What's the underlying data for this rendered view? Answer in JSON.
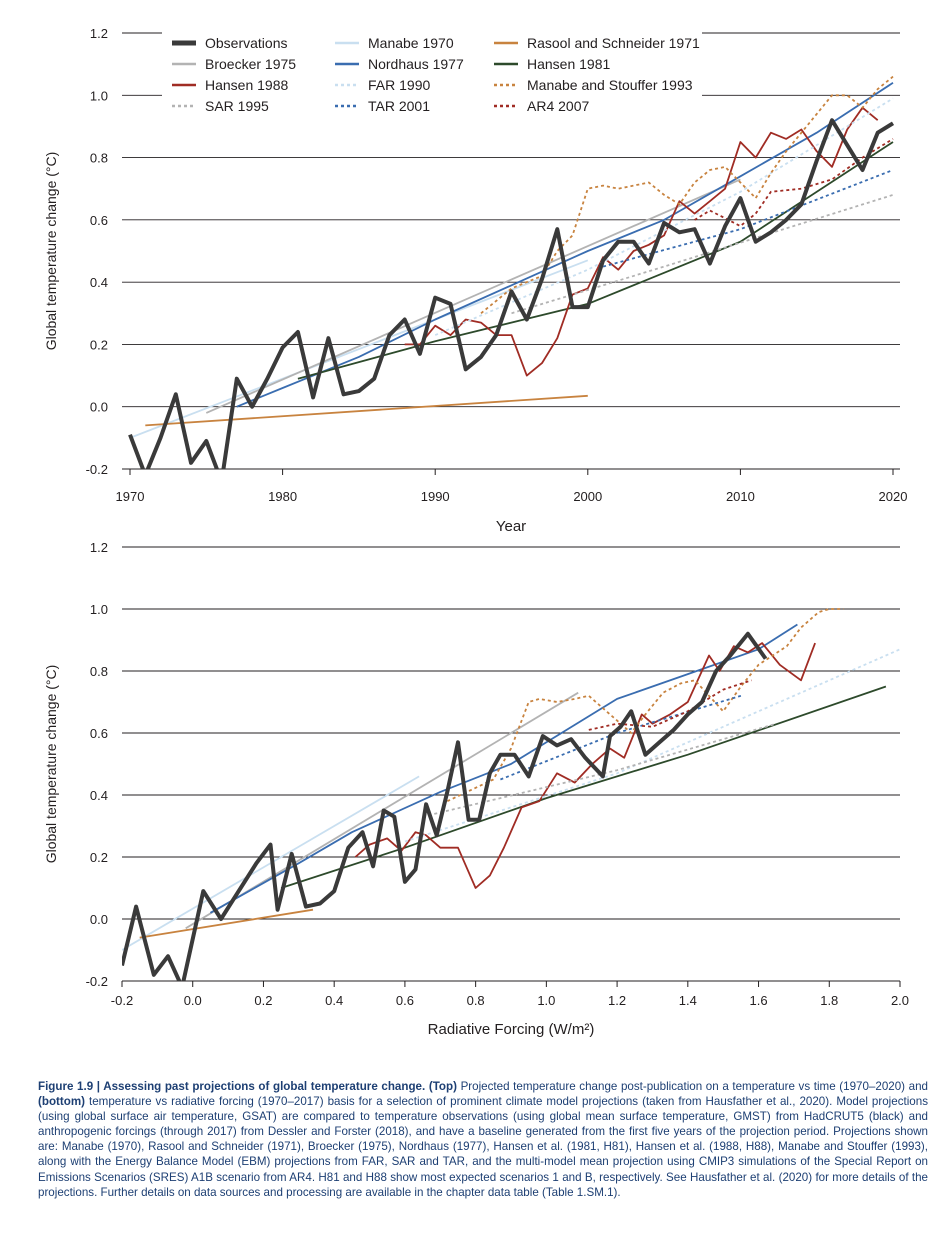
{
  "chart_data": [
    {
      "type": "line",
      "xlabel": "Year",
      "ylabel": "Global temperature change (°C)",
      "xlim": [
        1970,
        2020
      ],
      "ylim": [
        -0.2,
        1.2
      ],
      "xticks": [
        "1970",
        "1980",
        "1990",
        "2000",
        "2010",
        "2020"
      ],
      "yticks": [
        "-0.2",
        "0.0",
        "0.2",
        "0.4",
        "0.6",
        "0.8",
        "1.0",
        "1.2"
      ],
      "grid": "horizontal",
      "legend_position": "top-left",
      "series": [
        {
          "name": "Observations",
          "color": "#3a3a3a",
          "dash": "solid",
          "width": "heavy",
          "x": [
            1970,
            1971,
            1972,
            1973,
            1974,
            1975,
            1976,
            1977,
            1978,
            1979,
            1980,
            1981,
            1982,
            1983,
            1984,
            1985,
            1986,
            1987,
            1988,
            1989,
            1990,
            1991,
            1992,
            1993,
            1994,
            1995,
            1996,
            1997,
            1998,
            1999,
            2000,
            2001,
            2002,
            2003,
            2004,
            2005,
            2006,
            2007,
            2008,
            2009,
            2010,
            2011,
            2012,
            2013,
            2014,
            2015,
            2016,
            2017,
            2018,
            2019,
            2020
          ],
          "y": [
            -0.09,
            -0.22,
            -0.1,
            0.04,
            -0.18,
            -0.11,
            -0.24,
            0.09,
            0.0,
            0.09,
            0.19,
            0.24,
            0.03,
            0.22,
            0.04,
            0.05,
            0.09,
            0.23,
            0.28,
            0.17,
            0.35,
            0.33,
            0.12,
            0.16,
            0.23,
            0.37,
            0.28,
            0.41,
            0.57,
            0.32,
            0.32,
            0.47,
            0.53,
            0.53,
            0.46,
            0.59,
            0.56,
            0.57,
            0.46,
            0.58,
            0.67,
            0.53,
            0.56,
            0.6,
            0.65,
            0.79,
            0.92,
            0.84,
            0.76,
            0.88,
            0.91
          ]
        },
        {
          "name": "Manabe 1970",
          "color": "#c9dff0",
          "dash": "solid",
          "width": "normal",
          "x": [
            1970,
            2000
          ],
          "y": [
            -0.1,
            0.47
          ]
        },
        {
          "name": "Rasool and Schneider 1971",
          "color": "#c8833f",
          "dash": "solid",
          "width": "normal",
          "x": [
            1971,
            2000
          ],
          "y": [
            -0.06,
            0.035
          ]
        },
        {
          "name": "Broecker 1975",
          "color": "#b3b3b3",
          "dash": "solid",
          "width": "normal",
          "x": [
            1975,
            2010
          ],
          "y": [
            -0.02,
            0.73
          ]
        },
        {
          "name": "Nordhaus 1977",
          "color": "#3a6db0",
          "dash": "solid",
          "width": "normal",
          "x": [
            1977,
            1980,
            1985,
            1990,
            1995,
            2000,
            2005,
            2010,
            2015,
            2020
          ],
          "y": [
            0.0,
            0.06,
            0.16,
            0.28,
            0.39,
            0.5,
            0.6,
            0.74,
            0.88,
            1.04
          ]
        },
        {
          "name": "Hansen 1981",
          "color": "#2d4a2b",
          "dash": "solid",
          "width": "normal",
          "x": [
            1981,
            1990,
            2000,
            2010,
            2020
          ],
          "y": [
            0.09,
            0.21,
            0.33,
            0.53,
            0.85
          ]
        },
        {
          "name": "Hansen 1988",
          "color": "#a02c24",
          "dash": "solid",
          "width": "normal",
          "x": [
            1988,
            1989,
            1990,
            1991,
            1992,
            1993,
            1994,
            1995,
            1996,
            1997,
            1998,
            1999,
            2000,
            2001,
            2002,
            2003,
            2004,
            2005,
            2006,
            2007,
            2008,
            2009,
            2010,
            2011,
            2012,
            2013,
            2014,
            2015,
            2016,
            2017,
            2018,
            2019
          ],
          "y": [
            0.2,
            0.2,
            0.26,
            0.23,
            0.28,
            0.27,
            0.23,
            0.23,
            0.1,
            0.14,
            0.22,
            0.36,
            0.38,
            0.48,
            0.44,
            0.5,
            0.52,
            0.55,
            0.66,
            0.62,
            0.66,
            0.7,
            0.85,
            0.8,
            0.88,
            0.86,
            0.89,
            0.82,
            0.77,
            0.89,
            0.96,
            0.92
          ]
        },
        {
          "name": "FAR 1990",
          "color": "#c9dff0",
          "dash": "dotted",
          "width": "normal",
          "x": [
            1990,
            2000,
            2010,
            2020
          ],
          "y": [
            0.23,
            0.44,
            0.69,
            0.99
          ]
        },
        {
          "name": "Manabe and Stouffer 1993",
          "color": "#c8833f",
          "dash": "dotted",
          "width": "normal",
          "x": [
            1993,
            1995,
            1997,
            1998,
            1999,
            2000,
            2001,
            2002,
            2003,
            2004,
            2005,
            2006,
            2007,
            2008,
            2009,
            2010,
            2011,
            2012,
            2013,
            2014,
            2015,
            2016,
            2017,
            2018,
            2019,
            2020
          ],
          "y": [
            0.3,
            0.38,
            0.42,
            0.5,
            0.55,
            0.7,
            0.71,
            0.7,
            0.71,
            0.72,
            0.68,
            0.65,
            0.72,
            0.76,
            0.77,
            0.72,
            0.67,
            0.75,
            0.82,
            0.88,
            0.94,
            1.0,
            1.0,
            0.96,
            1.02,
            1.06
          ]
        },
        {
          "name": "SAR 1995",
          "color": "#b3b3b3",
          "dash": "dotted",
          "width": "normal",
          "x": [
            1995,
            2005,
            2020
          ],
          "y": [
            0.3,
            0.45,
            0.68
          ]
        },
        {
          "name": "TAR 2001",
          "color": "#3a6db0",
          "dash": "dotted",
          "width": "normal",
          "x": [
            2001,
            2010,
            2020
          ],
          "y": [
            0.45,
            0.57,
            0.76
          ]
        },
        {
          "name": "AR4 2007",
          "color": "#a02c24",
          "dash": "dotted",
          "width": "normal",
          "x": [
            2007,
            2008,
            2010,
            2011,
            2012,
            2014,
            2016,
            2018,
            2020
          ],
          "y": [
            0.6,
            0.63,
            0.58,
            0.62,
            0.69,
            0.7,
            0.73,
            0.8,
            0.86
          ]
        }
      ]
    },
    {
      "type": "line",
      "xlabel": "Radiative Forcing (W/m²)",
      "ylabel": "Global temperature change (°C)",
      "xlim": [
        -0.2,
        2.0
      ],
      "ylim": [
        -0.2,
        1.2
      ],
      "xticks": [
        "-0.2",
        "0.0",
        "0.2",
        "0.4",
        "0.6",
        "0.8",
        "1.0",
        "1.2",
        "1.4",
        "1.6",
        "1.8",
        "2.0"
      ],
      "yticks": [
        "-0.2",
        "0.0",
        "0.2",
        "0.4",
        "0.6",
        "0.8",
        "1.0",
        "1.2"
      ],
      "grid": "horizontal",
      "series": [
        {
          "name": "Observations",
          "color": "#3a3a3a",
          "dash": "solid",
          "width": "heavy",
          "x": [
            -0.2,
            -0.16,
            -0.11,
            -0.07,
            -0.03,
            0.03,
            0.08,
            0.13,
            0.18,
            0.22,
            0.24,
            0.28,
            0.32,
            0.36,
            0.4,
            0.44,
            0.48,
            0.51,
            0.54,
            0.57,
            0.6,
            0.63,
            0.66,
            0.69,
            0.72,
            0.75,
            0.78,
            0.81,
            0.84,
            0.87,
            0.91,
            0.95,
            0.99,
            1.03,
            1.07,
            1.11,
            1.16,
            1.18,
            1.21,
            1.24,
            1.28,
            1.32,
            1.36,
            1.4,
            1.44,
            1.48,
            1.52,
            1.57,
            1.62
          ],
          "y": [
            -0.15,
            0.04,
            -0.18,
            -0.12,
            -0.22,
            0.09,
            0.0,
            0.09,
            0.18,
            0.24,
            0.03,
            0.21,
            0.04,
            0.05,
            0.09,
            0.23,
            0.28,
            0.17,
            0.35,
            0.33,
            0.12,
            0.16,
            0.37,
            0.27,
            0.41,
            0.57,
            0.32,
            0.32,
            0.47,
            0.53,
            0.53,
            0.46,
            0.59,
            0.56,
            0.58,
            0.52,
            0.46,
            0.59,
            0.62,
            0.67,
            0.53,
            0.57,
            0.61,
            0.66,
            0.7,
            0.8,
            0.85,
            0.92,
            0.84
          ]
        },
        {
          "name": "Manabe 1970",
          "color": "#c9dff0",
          "dash": "solid",
          "width": "normal",
          "x": [
            -0.2,
            0.64
          ],
          "y": [
            -0.1,
            0.46
          ]
        },
        {
          "name": "Rasool and Schneider 1971",
          "color": "#c8833f",
          "dash": "solid",
          "width": "normal",
          "x": [
            -0.15,
            0.34
          ],
          "y": [
            -0.06,
            0.03
          ]
        },
        {
          "name": "Broecker 1975",
          "color": "#b3b3b3",
          "dash": "solid",
          "width": "normal",
          "x": [
            -0.02,
            1.09
          ],
          "y": [
            -0.03,
            0.73
          ]
        },
        {
          "name": "Nordhaus 1977",
          "color": "#3a6db0",
          "dash": "solid",
          "width": "normal",
          "x": [
            0.05,
            0.3,
            0.45,
            0.7,
            0.9,
            1.2,
            1.4,
            1.6,
            1.71
          ],
          "y": [
            0.02,
            0.18,
            0.28,
            0.41,
            0.5,
            0.71,
            0.79,
            0.87,
            0.95
          ]
        },
        {
          "name": "Hansen 1981",
          "color": "#2d4a2b",
          "dash": "solid",
          "width": "normal",
          "x": [
            0.25,
            0.6,
            1.0,
            1.4,
            1.96
          ],
          "y": [
            0.1,
            0.23,
            0.39,
            0.53,
            0.75
          ]
        },
        {
          "name": "Hansen 1988",
          "color": "#a02c24",
          "dash": "solid",
          "width": "normal",
          "x": [
            0.46,
            0.5,
            0.55,
            0.59,
            0.63,
            0.66,
            0.7,
            0.75,
            0.8,
            0.84,
            0.88,
            0.93,
            0.98,
            1.03,
            1.08,
            1.13,
            1.18,
            1.22,
            1.27,
            1.3,
            1.35,
            1.4,
            1.46,
            1.49,
            1.53,
            1.57,
            1.61,
            1.66,
            1.72,
            1.76
          ],
          "y": [
            0.2,
            0.24,
            0.26,
            0.22,
            0.28,
            0.27,
            0.23,
            0.23,
            0.1,
            0.14,
            0.23,
            0.36,
            0.38,
            0.47,
            0.44,
            0.5,
            0.55,
            0.52,
            0.66,
            0.63,
            0.66,
            0.7,
            0.85,
            0.8,
            0.88,
            0.86,
            0.89,
            0.82,
            0.77,
            0.89
          ]
        },
        {
          "name": "FAR 1990",
          "color": "#c9dff0",
          "dash": "dotted",
          "width": "normal",
          "x": [
            0.6,
            1.2,
            2.0
          ],
          "y": [
            0.25,
            0.47,
            0.87
          ]
        },
        {
          "name": "Manabe and Stouffer 1993",
          "color": "#c8833f",
          "dash": "dotted",
          "width": "normal",
          "x": [
            0.72,
            0.85,
            0.9,
            0.95,
            0.98,
            1.03,
            1.08,
            1.12,
            1.16,
            1.2,
            1.24,
            1.28,
            1.33,
            1.38,
            1.42,
            1.46,
            1.5,
            1.55,
            1.6,
            1.64,
            1.68,
            1.72,
            1.77,
            1.8,
            1.84
          ],
          "y": [
            0.38,
            0.45,
            0.55,
            0.7,
            0.71,
            0.7,
            0.71,
            0.72,
            0.68,
            0.64,
            0.6,
            0.66,
            0.73,
            0.76,
            0.77,
            0.72,
            0.67,
            0.75,
            0.82,
            0.85,
            0.88,
            0.94,
            0.99,
            1.0,
            1.0
          ]
        },
        {
          "name": "SAR 1995",
          "color": "#b3b3b3",
          "dash": "dotted",
          "width": "normal",
          "x": [
            0.65,
            1.2,
            1.65
          ],
          "y": [
            0.33,
            0.48,
            0.63
          ]
        },
        {
          "name": "TAR 2001",
          "color": "#3a6db0",
          "dash": "dotted",
          "width": "normal",
          "x": [
            0.87,
            1.2,
            1.55
          ],
          "y": [
            0.45,
            0.6,
            0.72
          ]
        },
        {
          "name": "AR4 2007",
          "color": "#a02c24",
          "dash": "dotted",
          "width": "normal",
          "x": [
            1.12,
            1.2,
            1.3,
            1.4,
            1.5,
            1.58
          ],
          "y": [
            0.61,
            0.63,
            0.62,
            0.67,
            0.74,
            0.77
          ]
        }
      ]
    }
  ],
  "caption": {
    "lead": "Figure 1.9 | Assessing past projections of global temperature change. (Top)",
    "part1": " Projected temperature change post-publication on a temperature vs time (1970–2020) and ",
    "bottom": "(bottom)",
    "part2": " temperature vs radiative forcing (1970–2017) basis for a selection of prominent climate model projections (taken from Hausfather et al., 2020). Model projections (using global surface air temperature, GSAT) are compared to temperature observations (using global mean surface temperature, GMST) from HadCRUT5 (black) and anthropogenic forcings (through 2017) from Dessler and Forster (2018), and have a baseline generated from the first five years of the projection period. Projections shown are: Manabe (1970), Rasool and Schneider (1971), Broecker (1975), Nordhaus (1977), Hansen et al. (1981, H81), Hansen et al. (1988, H88), Manabe and Stouffer (1993), along with the Energy Balance Model (EBM) projections from FAR, SAR and TAR, and the multi-model mean projection using CMIP3 simulations of the Special Report on Emissions Scenarios (SRES) A1B scenario from AR4. H81 and H88 show most expected scenarios 1 and B, respectively. See Hausfather et al. (2020) for more details of the projections. Further details on data sources and processing are available in the chapter data table (Table 1.SM.1)."
  }
}
